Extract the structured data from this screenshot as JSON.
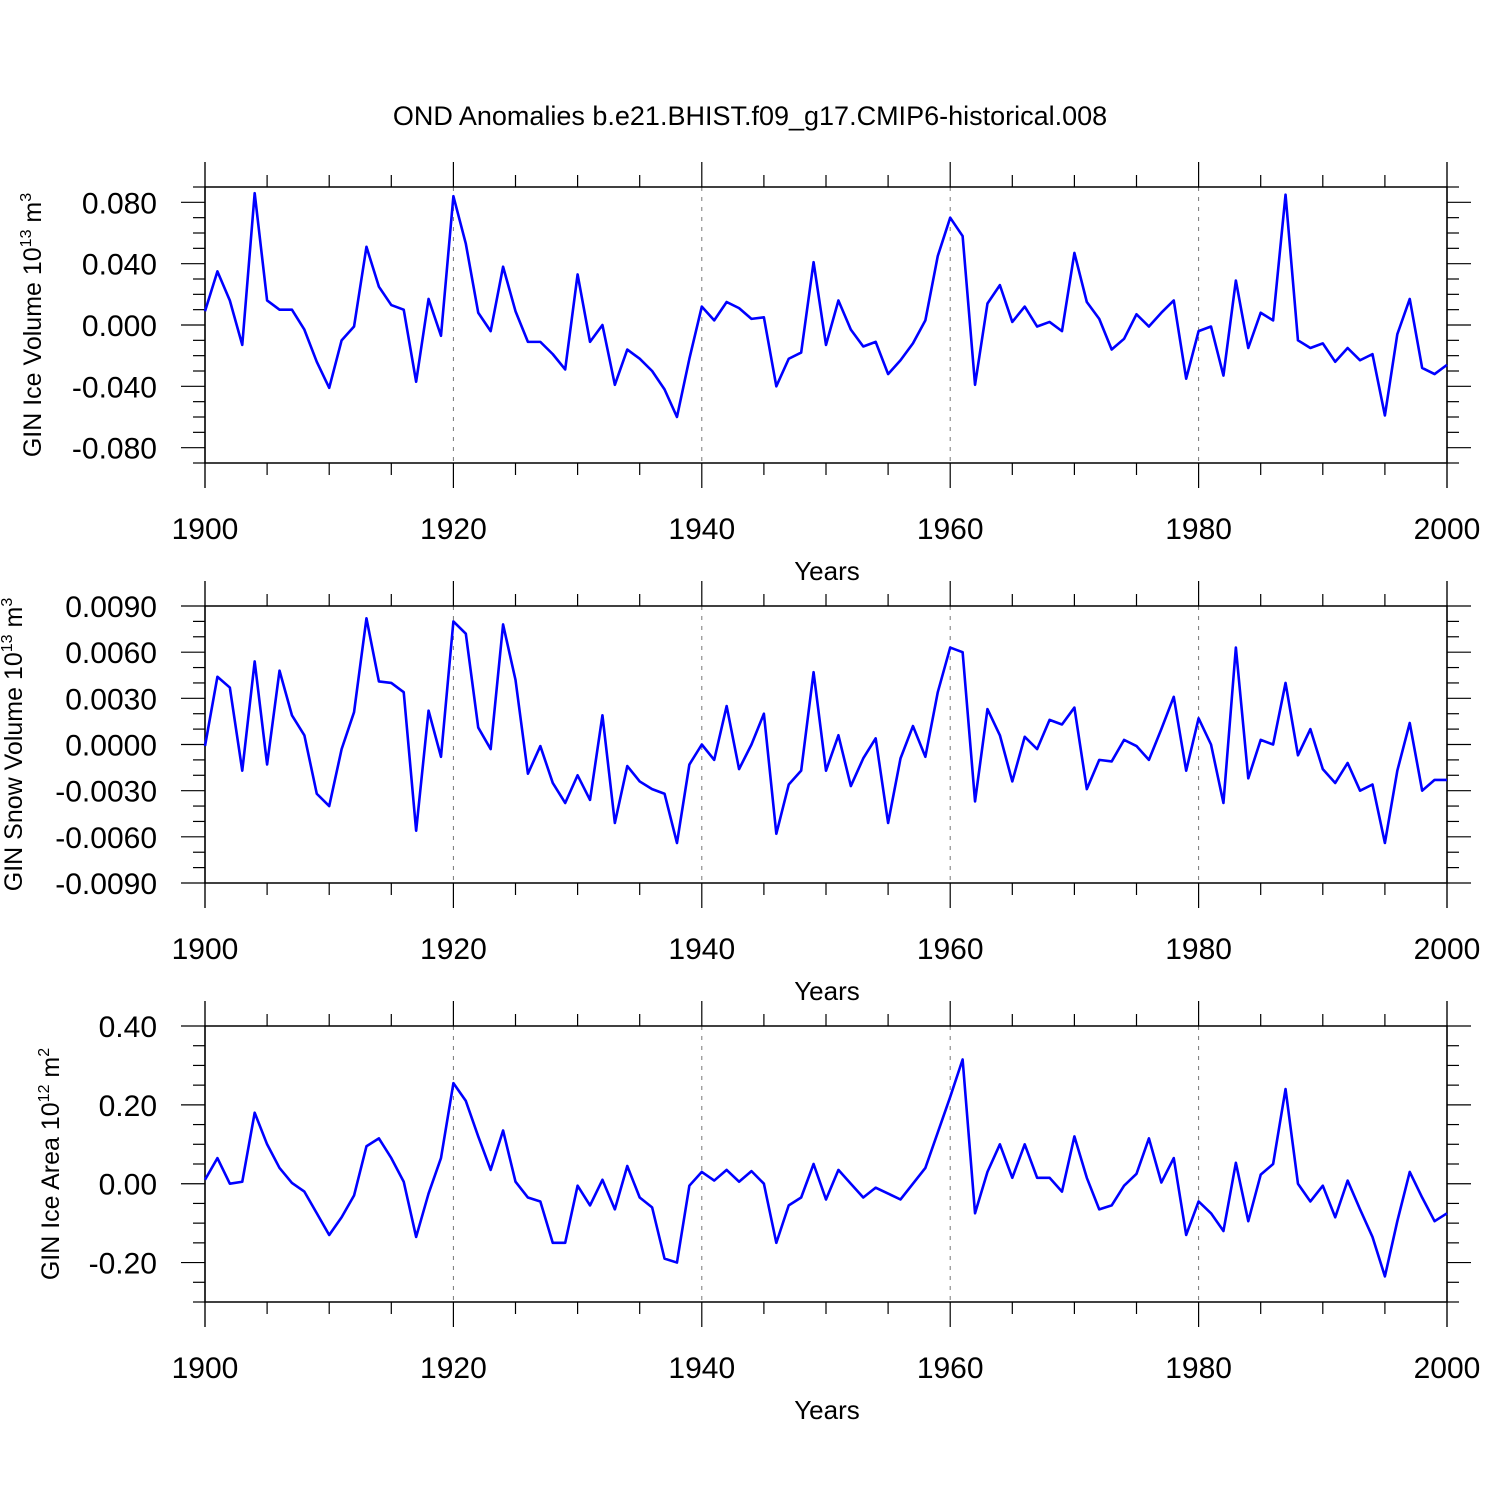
{
  "figure_title": "OND Anomalies b.e21.BHIST.f09_g17.CMIP6-historical.008",
  "colors": {
    "line": "#0000ff",
    "axis": "#000000",
    "grid": "#777777"
  },
  "chart_data": [
    {
      "type": "line",
      "ylabel_main": "GIN Ice Volume 10",
      "ylabel_sup": "13",
      "ylabel_unit": " m",
      "ylabel_unit_sup": "3",
      "xlabel": "Years",
      "xlim": [
        1900,
        2000
      ],
      "ylim": [
        -0.09,
        0.09
      ],
      "xticks": [
        1900,
        1920,
        1940,
        1960,
        1980,
        2000
      ],
      "xtick_labels": [
        "1900",
        "1920",
        "1940",
        "1960",
        "1980",
        "2000"
      ],
      "yticks": [
        -0.08,
        -0.04,
        0.0,
        0.04,
        0.08
      ],
      "ytick_labels": [
        "-0.080",
        "-0.040",
        "0.000",
        "0.040",
        "0.080"
      ],
      "yminor_step": 0.01,
      "grid_x": [
        1920,
        1940,
        1960,
        1980
      ],
      "series": [
        {
          "name": "GIN Ice Volume",
          "values": [
            0.009,
            0.035,
            0.016,
            -0.013,
            0.086,
            0.016,
            0.01,
            0.01,
            -0.003,
            -0.024,
            -0.041,
            -0.01,
            -0.001,
            0.051,
            0.025,
            0.013,
            0.01,
            -0.037,
            0.017,
            -0.007,
            0.084,
            0.053,
            0.008,
            -0.004,
            0.038,
            0.009,
            -0.011,
            -0.011,
            -0.019,
            -0.029,
            0.033,
            -0.011,
            0.0,
            -0.039,
            -0.016,
            -0.022,
            -0.03,
            -0.042,
            -0.06,
            -0.022,
            0.012,
            0.003,
            0.015,
            0.011,
            0.004,
            0.005,
            -0.04,
            -0.022,
            -0.018,
            0.041,
            -0.013,
            0.016,
            -0.003,
            -0.014,
            -0.011,
            -0.032,
            -0.023,
            -0.012,
            0.003,
            0.045,
            0.07,
            0.058,
            -0.039,
            0.014,
            0.026,
            0.002,
            0.012,
            -0.001,
            0.002,
            -0.004,
            0.047,
            0.015,
            0.004,
            -0.016,
            -0.009,
            0.007,
            -0.001,
            0.008,
            0.016,
            -0.035,
            -0.004,
            -0.001,
            -0.033,
            0.029,
            -0.015,
            0.008,
            0.003,
            0.085,
            -0.01,
            -0.015,
            -0.012,
            -0.024,
            -0.015,
            -0.023,
            -0.019,
            -0.059,
            -0.006,
            0.017,
            -0.028,
            -0.032,
            -0.026
          ]
        }
      ]
    },
    {
      "type": "line",
      "ylabel_main": "GIN Snow Volume 10",
      "ylabel_sup": "13",
      "ylabel_unit": " m",
      "ylabel_unit_sup": "3",
      "xlabel": "Years",
      "xlim": [
        1900,
        2000
      ],
      "ylim": [
        -0.009,
        0.009
      ],
      "xticks": [
        1900,
        1920,
        1940,
        1960,
        1980,
        2000
      ],
      "xtick_labels": [
        "1900",
        "1920",
        "1940",
        "1960",
        "1980",
        "2000"
      ],
      "yticks": [
        -0.009,
        -0.006,
        -0.003,
        0.0,
        0.003,
        0.006,
        0.009
      ],
      "ytick_labels": [
        "-0.0090",
        "-0.0060",
        "-0.0030",
        "0.0000",
        "0.0030",
        "0.0060",
        "0.0090"
      ],
      "yminor_step": 0.001,
      "grid_x": [
        1920,
        1940,
        1960,
        1980
      ],
      "series": [
        {
          "name": "GIN Snow Volume",
          "values": [
            -0.0001,
            0.0044,
            0.0037,
            -0.0017,
            0.0054,
            -0.0013,
            0.0048,
            0.0019,
            0.0006,
            -0.0032,
            -0.004,
            -0.0003,
            0.0021,
            0.0082,
            0.0041,
            0.004,
            0.0034,
            -0.0056,
            0.0022,
            -0.0008,
            0.008,
            0.0072,
            0.0011,
            -0.0003,
            0.0078,
            0.0042,
            -0.0019,
            -0.0001,
            -0.0025,
            -0.0038,
            -0.002,
            -0.0036,
            0.0019,
            -0.0051,
            -0.0014,
            -0.0024,
            -0.0029,
            -0.0032,
            -0.0064,
            -0.0013,
            0.0,
            -0.001,
            0.0025,
            -0.0016,
            0.0,
            0.002,
            -0.0058,
            -0.0026,
            -0.0017,
            0.0047,
            -0.0017,
            0.0006,
            -0.0027,
            -0.0009,
            0.0004,
            -0.0051,
            -0.0009,
            0.0012,
            -0.0008,
            0.0034,
            0.0063,
            0.006,
            -0.0037,
            0.0023,
            0.0006,
            -0.0024,
            0.0005,
            -0.0003,
            0.0016,
            0.0013,
            0.0024,
            -0.0029,
            -0.001,
            -0.0011,
            0.0003,
            -0.0001,
            -0.001,
            0.001,
            0.0031,
            -0.0017,
            0.0017,
            0.0,
            -0.0038,
            0.0063,
            -0.0022,
            0.0003,
            0.0,
            0.004,
            -0.0007,
            0.001,
            -0.0016,
            -0.0025,
            -0.0012,
            -0.003,
            -0.0026,
            -0.0064,
            -0.0017,
            0.0014,
            -0.003,
            -0.0023,
            -0.0023
          ]
        }
      ]
    },
    {
      "type": "line",
      "ylabel_main": "GIN Ice Area 10",
      "ylabel_sup": "12",
      "ylabel_unit": " m",
      "ylabel_unit_sup": "2",
      "xlabel": "Years",
      "xlim": [
        1900,
        2000
      ],
      "ylim": [
        -0.3,
        0.4
      ],
      "xticks": [
        1900,
        1920,
        1940,
        1960,
        1980,
        2000
      ],
      "xtick_labels": [
        "1900",
        "1920",
        "1940",
        "1960",
        "1980",
        "2000"
      ],
      "yticks": [
        -0.2,
        0.0,
        0.2,
        0.4
      ],
      "ytick_labels": [
        "-0.20",
        "0.00",
        "0.20",
        "0.40"
      ],
      "yminor_step": 0.05,
      "grid_x": [
        1920,
        1940,
        1960,
        1980
      ],
      "series": [
        {
          "name": "GIN Ice Area",
          "values": [
            0.01,
            0.065,
            0.0,
            0.005,
            0.18,
            0.1,
            0.04,
            0.002,
            -0.02,
            -0.075,
            -0.13,
            -0.085,
            -0.03,
            0.095,
            0.115,
            0.065,
            0.005,
            -0.135,
            -0.025,
            0.065,
            0.255,
            0.21,
            0.12,
            0.035,
            0.135,
            0.005,
            -0.035,
            -0.045,
            -0.15,
            -0.15,
            -0.005,
            -0.055,
            0.01,
            -0.065,
            0.045,
            -0.035,
            -0.06,
            -0.19,
            -0.2,
            -0.005,
            0.03,
            0.008,
            0.035,
            0.005,
            0.032,
            0.0,
            -0.15,
            -0.055,
            -0.035,
            0.05,
            -0.04,
            0.035,
            0.0,
            -0.035,
            -0.01,
            -0.025,
            -0.04,
            0.0,
            0.04,
            0.13,
            0.22,
            0.315,
            -0.075,
            0.03,
            0.1,
            0.015,
            0.1,
            0.015,
            0.015,
            -0.02,
            0.12,
            0.015,
            -0.065,
            -0.055,
            -0.005,
            0.025,
            0.115,
            0.003,
            0.065,
            -0.13,
            -0.045,
            -0.075,
            -0.12,
            0.053,
            -0.095,
            0.023,
            0.05,
            0.24,
            0.0,
            -0.045,
            -0.005,
            -0.085,
            0.008,
            -0.065,
            -0.135,
            -0.235,
            -0.095,
            0.03,
            -0.035,
            -0.095,
            -0.075
          ]
        }
      ]
    }
  ]
}
